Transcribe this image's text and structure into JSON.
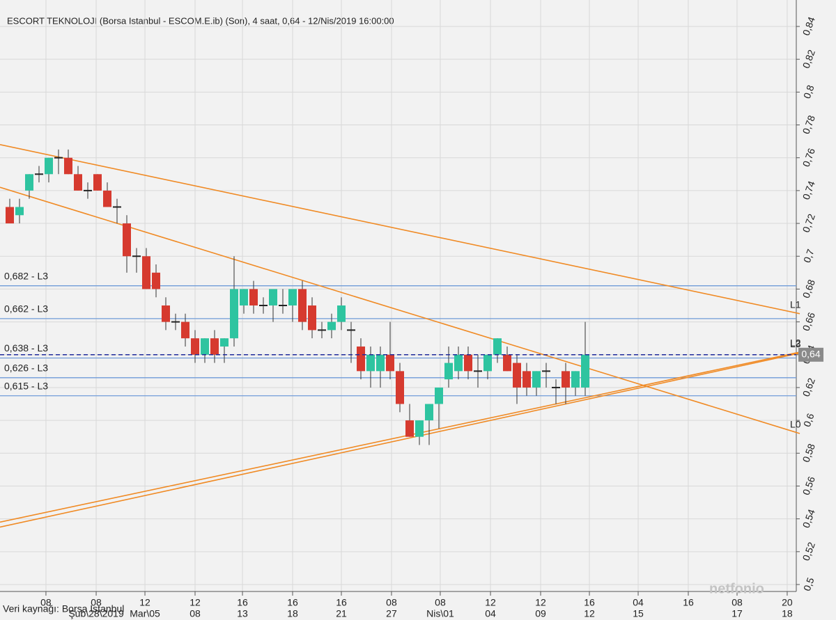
{
  "chart_data": {
    "type": "candlestick",
    "title": "ESCORT TEKNOLOJI (Borsa Istanbul - ESCOM.E.ib) (Son), 4 saat, 0,64 - 12/Nis/2019 16:00:00",
    "source": "Veri kaynağı: Borsa Istanbul",
    "watermark": "netfonio",
    "up_color": "#2ec4a0",
    "down_color": "#d63a2f",
    "grid": true,
    "xlim": [
      -1,
      81
    ],
    "ylim": [
      0.5,
      0.84
    ],
    "yticks": [
      {
        "value": 0.5,
        "label": "0,5"
      },
      {
        "value": 0.52,
        "label": "0,52"
      },
      {
        "value": 0.54,
        "label": "0,54"
      },
      {
        "value": 0.56,
        "label": "0,56"
      },
      {
        "value": 0.58,
        "label": "0,58"
      },
      {
        "value": 0.6,
        "label": "0,6"
      },
      {
        "value": 0.62,
        "label": "0,62"
      },
      {
        "value": 0.64,
        "label": "0,64"
      },
      {
        "value": 0.66,
        "label": "0,66"
      },
      {
        "value": 0.68,
        "label": "0,68"
      },
      {
        "value": 0.7,
        "label": "0,7"
      },
      {
        "value": 0.72,
        "label": "0,72"
      },
      {
        "value": 0.74,
        "label": "0,74"
      },
      {
        "value": 0.76,
        "label": "0,76"
      },
      {
        "value": 0.78,
        "label": "0,78"
      },
      {
        "value": 0.8,
        "label": "0,8"
      },
      {
        "value": 0.82,
        "label": "0,82"
      },
      {
        "value": 0.84,
        "label": "0,84"
      }
    ],
    "xticks": [
      {
        "value": 3.71,
        "label": "08"
      },
      {
        "value": 8.86,
        "label": "08"
      },
      {
        "value": 13.86,
        "label": "12"
      },
      {
        "value": 19,
        "label": "12"
      },
      {
        "value": 23.86,
        "label": "16"
      },
      {
        "value": 29,
        "label": "16"
      },
      {
        "value": 34,
        "label": "16"
      },
      {
        "value": 39.14,
        "label": "08"
      },
      {
        "value": 44.14,
        "label": "08"
      },
      {
        "value": 49.29,
        "label": "12"
      },
      {
        "value": 54.43,
        "label": "12"
      },
      {
        "value": 59.43,
        "label": "16"
      },
      {
        "value": 64.43,
        "label": "04"
      },
      {
        "value": 69.57,
        "label": "16"
      },
      {
        "value": 74.57,
        "label": "08"
      },
      {
        "value": 79.71,
        "label": "20"
      }
    ],
    "xticks_date": [
      {
        "value": 8.86,
        "label": "Şub\\28\\2019"
      },
      {
        "value": 13.86,
        "label": "Mar\\05"
      },
      {
        "value": 19,
        "label": "08"
      },
      {
        "value": 23.86,
        "label": "13"
      },
      {
        "value": 29,
        "label": "18"
      },
      {
        "value": 34,
        "label": "21"
      },
      {
        "value": 39.14,
        "label": "27"
      },
      {
        "value": 44.14,
        "label": "Nis\\01"
      },
      {
        "value": 49.29,
        "label": "04"
      },
      {
        "value": 54.43,
        "label": "09"
      },
      {
        "value": 59.43,
        "label": "12"
      },
      {
        "value": 64.43,
        "label": "15"
      },
      {
        "value": 74.57,
        "label": "17"
      },
      {
        "value": 79.71,
        "label": "18"
      }
    ],
    "candles": {
      "open": [
        0.73,
        0.725,
        0.74,
        0.75,
        0.75,
        0.76,
        0.76,
        0.75,
        0.74,
        0.75,
        0.74,
        0.73,
        0.72,
        0.7,
        0.7,
        0.69,
        0.67,
        0.66,
        0.66,
        0.65,
        0.64,
        0.65,
        0.645,
        0.65,
        0.67,
        0.68,
        0.67,
        0.67,
        0.67,
        0.67,
        0.68,
        0.67,
        0.655,
        0.655,
        0.66,
        0.655,
        0.645,
        0.63,
        0.63,
        0.64,
        0.63,
        0.6,
        0.59,
        0.6,
        0.61,
        0.625,
        0.63,
        0.64,
        0.63,
        0.63,
        0.64,
        0.64,
        0.635,
        0.63,
        0.62,
        0.63,
        0.62,
        0.63,
        0.62,
        0.62
      ],
      "high": [
        0.735,
        0.735,
        0.75,
        0.755,
        0.76,
        0.765,
        0.765,
        0.755,
        0.745,
        0.75,
        0.745,
        0.735,
        0.725,
        0.705,
        0.705,
        0.695,
        0.675,
        0.665,
        0.665,
        0.655,
        0.65,
        0.655,
        0.65,
        0.7,
        0.68,
        0.685,
        0.675,
        0.675,
        0.68,
        0.675,
        0.685,
        0.675,
        0.66,
        0.665,
        0.675,
        0.66,
        0.65,
        0.645,
        0.645,
        0.66,
        0.635,
        0.61,
        0.6,
        0.61,
        0.615,
        0.645,
        0.645,
        0.645,
        0.64,
        0.64,
        0.65,
        0.645,
        0.64,
        0.635,
        0.63,
        0.635,
        0.625,
        0.635,
        0.63,
        0.66
      ],
      "low": [
        0.72,
        0.72,
        0.735,
        0.745,
        0.745,
        0.75,
        0.75,
        0.74,
        0.735,
        0.74,
        0.73,
        0.72,
        0.69,
        0.69,
        0.68,
        0.675,
        0.655,
        0.655,
        0.645,
        0.635,
        0.635,
        0.635,
        0.635,
        0.645,
        0.665,
        0.665,
        0.665,
        0.66,
        0.665,
        0.66,
        0.655,
        0.65,
        0.65,
        0.65,
        0.655,
        0.635,
        0.625,
        0.62,
        0.62,
        0.625,
        0.605,
        0.59,
        0.585,
        0.585,
        0.595,
        0.62,
        0.625,
        0.625,
        0.62,
        0.625,
        0.635,
        0.63,
        0.61,
        0.615,
        0.615,
        0.62,
        0.61,
        0.61,
        0.615,
        0.615
      ],
      "close": [
        0.72,
        0.73,
        0.75,
        0.75,
        0.76,
        0.76,
        0.75,
        0.74,
        0.74,
        0.74,
        0.73,
        0.73,
        0.7,
        0.7,
        0.68,
        0.68,
        0.66,
        0.66,
        0.65,
        0.64,
        0.65,
        0.64,
        0.65,
        0.68,
        0.68,
        0.67,
        0.67,
        0.68,
        0.67,
        0.68,
        0.66,
        0.655,
        0.655,
        0.66,
        0.67,
        0.655,
        0.63,
        0.64,
        0.64,
        0.63,
        0.61,
        0.59,
        0.6,
        0.61,
        0.62,
        0.635,
        0.64,
        0.63,
        0.63,
        0.64,
        0.65,
        0.63,
        0.62,
        0.62,
        0.63,
        0.63,
        0.62,
        0.62,
        0.63,
        0.64
      ]
    },
    "levels": [
      {
        "value": 0.682,
        "label": "0,682 - L3"
      },
      {
        "value": 0.662,
        "label": "0,662 - L3"
      },
      {
        "value": 0.638,
        "label": "0,638 - L3"
      },
      {
        "value": 0.626,
        "label": "0,626 - L3"
      },
      {
        "value": 0.615,
        "label": "0,615 - L3"
      }
    ],
    "level_color": "#6f9bd8",
    "last_price": {
      "value": 0.64,
      "label": "0,64"
    },
    "last_price_color": "#1f2a9c",
    "trend_color": "#f08a24",
    "trend_lines": [
      {
        "name": "L1",
        "x": [
          -1,
          81
        ],
        "y": [
          0.768,
          0.665
        ]
      },
      {
        "name": "L0",
        "x": [
          -1,
          81
        ],
        "y": [
          0.742,
          0.592
        ]
      },
      {
        "name": "L2",
        "x": [
          -1,
          81
        ],
        "y": [
          0.538,
          0.6416
        ]
      },
      {
        "name": "L3",
        "x": [
          -1,
          81
        ],
        "y": [
          0.535,
          0.641
        ]
      }
    ]
  }
}
